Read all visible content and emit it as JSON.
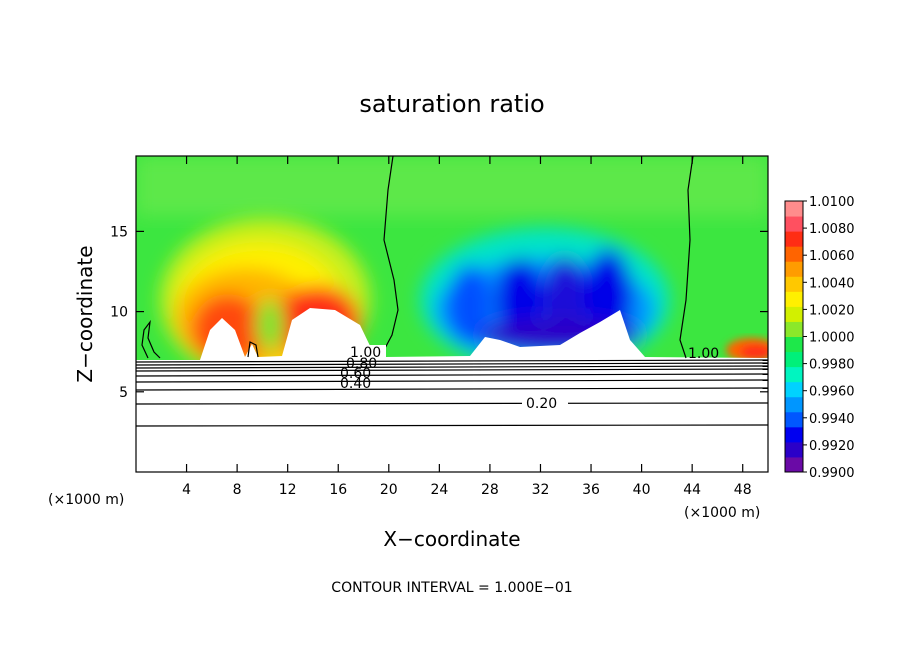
{
  "chart_data": {
    "type": "heatmap",
    "title": "saturation ratio",
    "xlabel": "X−coordinate",
    "ylabel": "Z−coordinate",
    "x_unit_label_left": "(×1000 m)",
    "x_unit_label_right": "(×1000 m)",
    "xlim": [
      0,
      50
    ],
    "ylim": [
      0,
      19.7
    ],
    "x_ticks": [
      4,
      8,
      12,
      16,
      20,
      24,
      28,
      32,
      36,
      40,
      44,
      48
    ],
    "y_ticks": [
      5,
      10,
      15
    ],
    "colorbar": {
      "min": 0.99,
      "max": 1.01,
      "tick_labels": [
        "1.0100",
        "1.0080",
        "1.0060",
        "1.0040",
        "1.0020",
        "1.0000",
        "0.9980",
        "0.9960",
        "0.9940",
        "0.9920",
        "0.9900"
      ],
      "colors": [
        "#6a0aa6",
        "#2b00c8",
        "#0000f0",
        "#0057ff",
        "#0096ff",
        "#00d2ff",
        "#00f5c0",
        "#00f07a",
        "#1ee84a",
        "#8be82a",
        "#d2f000",
        "#fff000",
        "#ffc800",
        "#ff9c00",
        "#ff6400",
        "#ff2d14",
        "#ff5060",
        "#ff8c8c"
      ]
    },
    "contour_labels": [
      "1.00",
      "0.80",
      "0.60",
      "0.40",
      "0.20",
      "1.00"
    ],
    "contour_interval_text": "CONTOUR INTERVAL = 1.000E−01",
    "grid": false,
    "legend": "colorbar right"
  }
}
